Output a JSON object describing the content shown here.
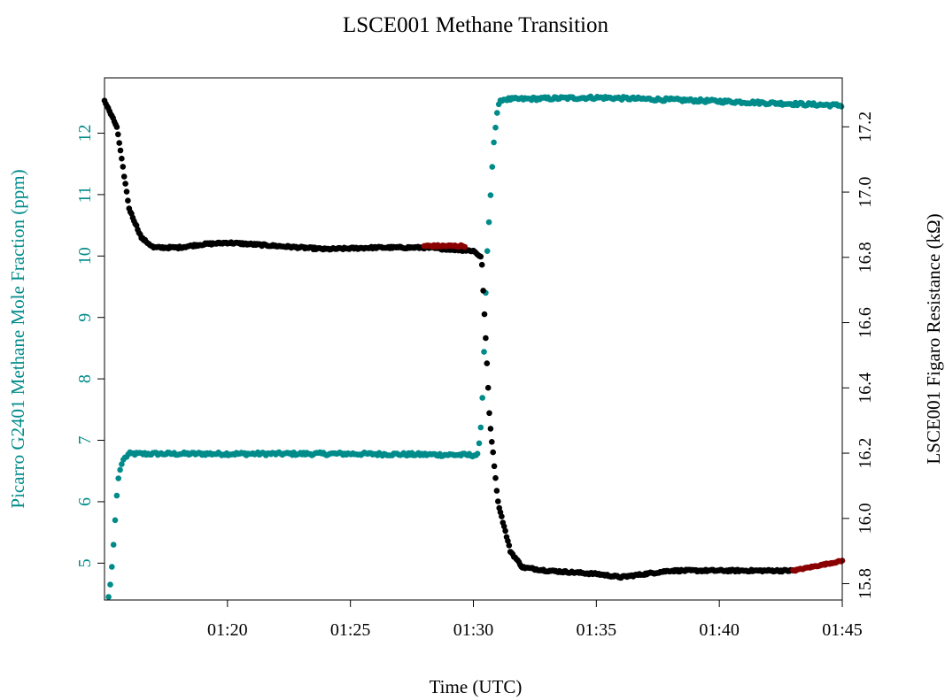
{
  "chart_data": {
    "type": "scatter",
    "title": "LSCE001 Methane Transition",
    "xlabel": "Time (UTC)",
    "ylabel_left": "Picarro G2401 Methane Mole Fraction (ppm)",
    "ylabel_right": "LSCE001 Figaro Resistance (kΩ)",
    "x_range": [
      "01:15:00",
      "01:45:00"
    ],
    "x_ticks": [
      "01:20",
      "01:25",
      "01:30",
      "01:35",
      "01:40",
      "01:45"
    ],
    "y_left_range": [
      4.4,
      12.9
    ],
    "y_left_ticks": [
      5,
      6,
      7,
      8,
      9,
      10,
      11,
      12
    ],
    "y_right_range": [
      15.75,
      17.35
    ],
    "y_right_ticks": [
      15.8,
      16.0,
      16.2,
      16.4,
      16.6,
      16.8,
      17.0,
      17.2
    ],
    "colors": {
      "picarro": "#008b8b",
      "figaro": "#000000",
      "figaro_highlight": "#8b0000"
    },
    "series": [
      {
        "name": "Picarro G2401 Methane Mole Fraction (ppm)",
        "axis": "left",
        "color": "#008b8b",
        "description_points": [
          [
            "01:15:10",
            4.45
          ],
          [
            "01:15:15",
            4.7
          ],
          [
            "01:15:20",
            5.1
          ],
          [
            "01:15:25",
            5.6
          ],
          [
            "01:15:30",
            6.1
          ],
          [
            "01:15:35",
            6.45
          ],
          [
            "01:15:45",
            6.68
          ],
          [
            "01:16:00",
            6.78
          ],
          [
            "01:20:00",
            6.78
          ],
          [
            "01:25:00",
            6.78
          ],
          [
            "01:30:00",
            6.76
          ],
          [
            "01:30:10",
            6.76
          ],
          [
            "01:30:15",
            7.0
          ],
          [
            "01:30:20",
            7.35
          ],
          [
            "01:30:25",
            8.2
          ],
          [
            "01:30:30",
            9.4
          ],
          [
            "01:30:35",
            10.25
          ],
          [
            "01:30:40",
            10.75
          ],
          [
            "01:30:45",
            11.35
          ],
          [
            "01:30:50",
            11.85
          ],
          [
            "01:30:55",
            12.15
          ],
          [
            "01:31:00",
            12.45
          ],
          [
            "01:31:10",
            12.55
          ],
          [
            "01:35:00",
            12.58
          ],
          [
            "01:40:00",
            12.52
          ],
          [
            "01:45:00",
            12.45
          ]
        ]
      },
      {
        "name": "LSCE001 Figaro Resistance (kΩ)",
        "axis": "right",
        "color": "#000000",
        "description_points": [
          [
            "01:15:00",
            17.28
          ],
          [
            "01:15:30",
            17.2
          ],
          [
            "01:16:00",
            16.95
          ],
          [
            "01:16:30",
            16.86
          ],
          [
            "01:17:00",
            16.83
          ],
          [
            "01:18:00",
            16.83
          ],
          [
            "01:19:00",
            16.84
          ],
          [
            "01:20:00",
            16.845
          ],
          [
            "01:21:00",
            16.84
          ],
          [
            "01:22:00",
            16.835
          ],
          [
            "01:24:00",
            16.825
          ],
          [
            "01:26:00",
            16.83
          ],
          [
            "01:28:00",
            16.83
          ],
          [
            "01:30:00",
            16.82
          ],
          [
            "01:30:20",
            16.8
          ],
          [
            "01:30:40",
            16.3
          ],
          [
            "01:31:00",
            16.05
          ],
          [
            "01:31:30",
            15.9
          ],
          [
            "01:32:00",
            15.85
          ],
          [
            "01:33:00",
            15.84
          ],
          [
            "01:35:00",
            15.83
          ],
          [
            "01:36:00",
            15.82
          ],
          [
            "01:38:00",
            15.84
          ],
          [
            "01:40:00",
            15.84
          ],
          [
            "01:43:00",
            15.84
          ]
        ],
        "highlight_color": "#8b0000",
        "highlight_segments": [
          {
            "from": "01:28:00",
            "to": "01:29:40",
            "value": 16.835
          },
          {
            "from": "01:43:00",
            "to": "01:45:00",
            "value_start": 15.84,
            "value_end": 15.87
          }
        ]
      }
    ]
  }
}
